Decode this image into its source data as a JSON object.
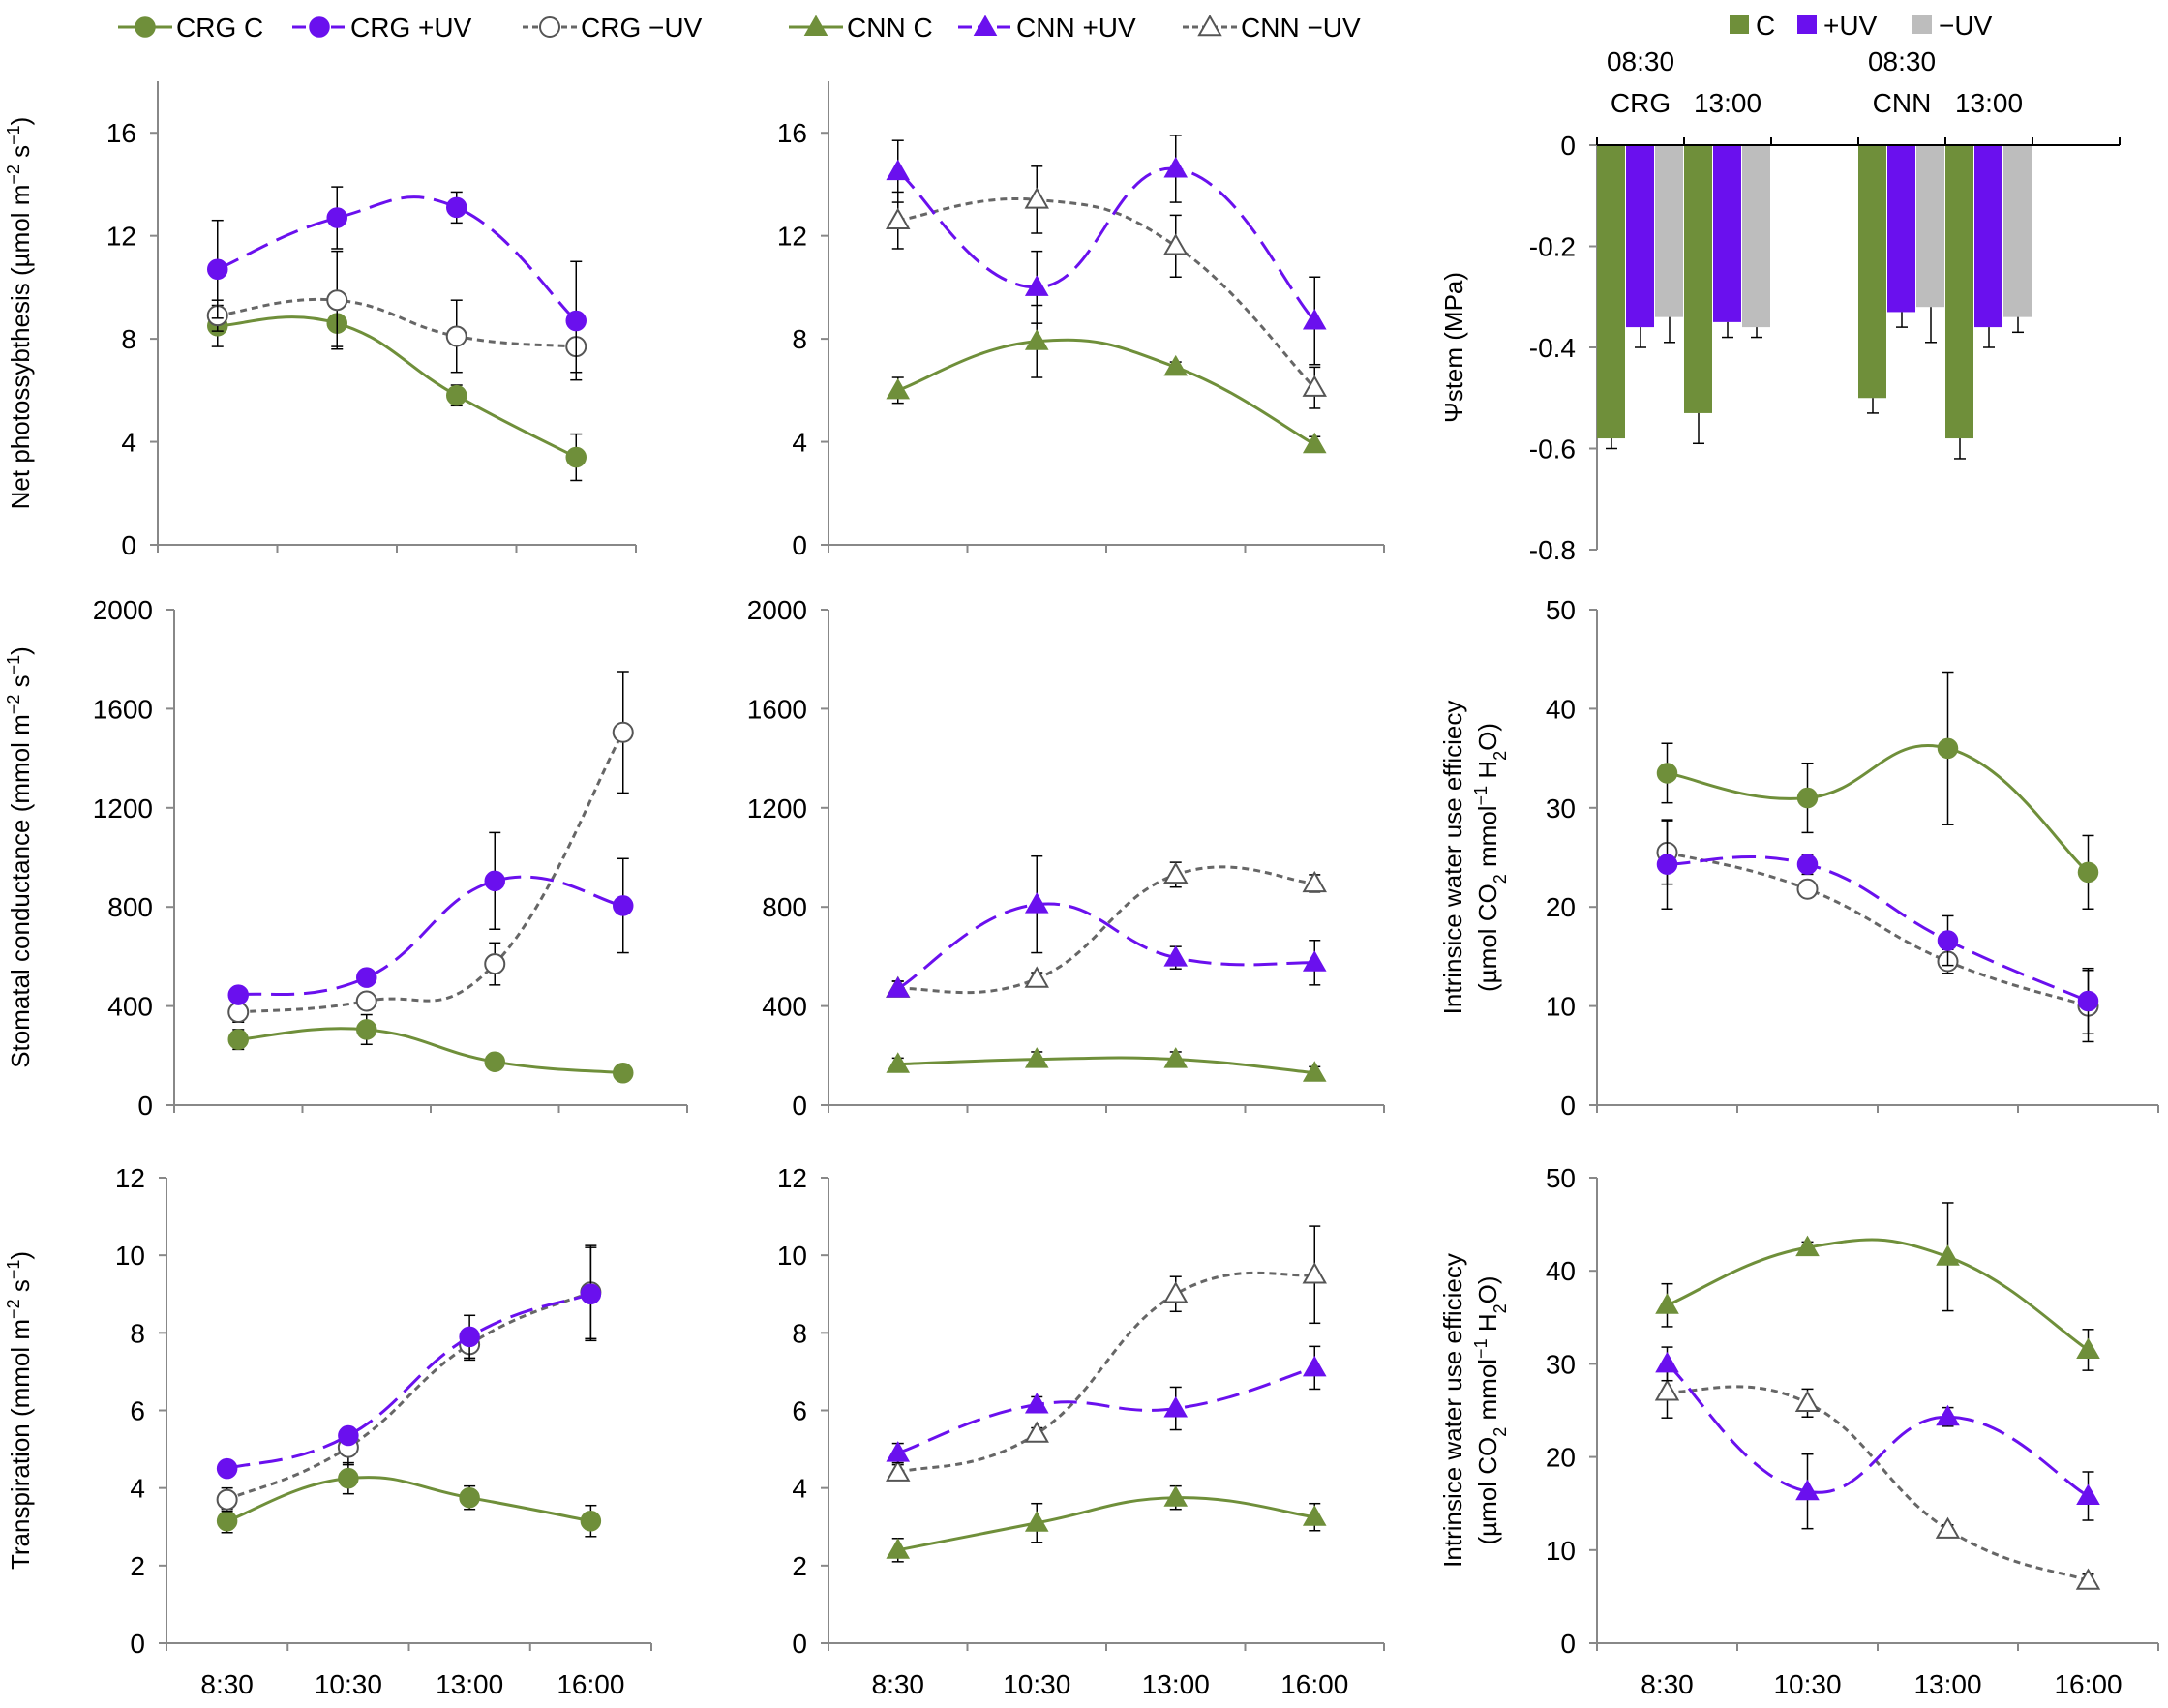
{
  "colors": {
    "control": "#6f8f3a",
    "plusUV": "#6a10ee",
    "minusUV": "#666666",
    "minusUVBar": "#bdbdbd"
  },
  "legend": {
    "crg": [
      "CRG C",
      "CRG  +UV",
      "CRG  −UV"
    ],
    "cnn": [
      "CNN C",
      "CNN  +UV",
      "CNN  −UV"
    ],
    "bars": [
      "C",
      "+UV",
      "−UV"
    ]
  },
  "chart_data": [
    {
      "id": "crg_photo",
      "type": "line",
      "ylabel_lines": [
        [
          {
            "t": "Net photossybthesis (µmol m"
          },
          {
            "t": "−2",
            "sup": true
          },
          {
            "t": " s"
          },
          {
            "t": "−1",
            "sup": true
          },
          {
            "t": ")"
          }
        ]
      ],
      "ylim": [
        0,
        18
      ],
      "yticks": [
        0,
        4,
        8,
        12,
        16
      ],
      "x_labels": [
        "8:30",
        "10:30",
        "13:00",
        "16:00"
      ],
      "series": [
        {
          "name": "CRG C",
          "treat": "control",
          "marker": "circle",
          "values": [
            8.5,
            8.6,
            5.8,
            3.4
          ],
          "err": [
            0.8,
            0.9,
            0.4,
            0.9
          ]
        },
        {
          "name": "CRG +UV",
          "treat": "plusUV",
          "marker": "circle",
          "values": [
            10.7,
            12.7,
            13.1,
            8.7
          ],
          "err": [
            1.9,
            1.2,
            0.6,
            2.3
          ]
        },
        {
          "name": "CRG −UV",
          "treat": "minusUV",
          "marker": "circle",
          "values": [
            8.9,
            9.5,
            8.1,
            7.7
          ],
          "err": [
            0.6,
            1.9,
            1.4,
            1.0
          ]
        }
      ]
    },
    {
      "id": "cnn_photo",
      "type": "line",
      "ylabel_lines": [],
      "ylim": [
        0,
        18
      ],
      "yticks": [
        0,
        4,
        8,
        12,
        16
      ],
      "x_labels": [
        "8:30",
        "10:30",
        "13:00",
        "16:00"
      ],
      "series": [
        {
          "name": "CNN C",
          "treat": "control",
          "marker": "triangle",
          "values": [
            6.0,
            7.9,
            6.9,
            3.9
          ],
          "err": [
            0.5,
            1.4,
            0.2,
            0.3
          ]
        },
        {
          "name": "CNN +UV",
          "treat": "plusUV",
          "marker": "triangle",
          "values": [
            14.5,
            10.0,
            14.6,
            8.7
          ],
          "err": [
            1.2,
            1.4,
            1.3,
            1.7
          ]
        },
        {
          "name": "CNN −UV",
          "treat": "minusUV",
          "marker": "triangle",
          "values": [
            12.6,
            13.4,
            11.6,
            6.1
          ],
          "err": [
            1.1,
            1.3,
            1.2,
            0.8
          ]
        }
      ]
    },
    {
      "id": "stem_bars",
      "type": "bar",
      "ylabel": "Ψstem (MPa)",
      "ylim": [
        -0.8,
        0
      ],
      "yticks": [
        0,
        -0.2,
        -0.4,
        -0.6,
        -0.8
      ],
      "group_labels": [
        [
          "08:30",
          "CRG"
        ],
        [
          "13:00"
        ],
        [
          "08:30",
          "CNN"
        ],
        [
          "13:00"
        ]
      ],
      "groups": [
        {
          "values": [
            -0.58,
            -0.36,
            -0.34
          ],
          "err": [
            0.02,
            0.04,
            0.05
          ]
        },
        {
          "values": [
            -0.53,
            -0.35,
            -0.36
          ],
          "err": [
            0.06,
            0.03,
            0.02
          ]
        },
        {
          "values": [
            -0.5,
            -0.33,
            -0.32
          ],
          "err": [
            0.03,
            0.03,
            0.07
          ]
        },
        {
          "values": [
            -0.58,
            -0.36,
            -0.34
          ],
          "err": [
            0.04,
            0.04,
            0.03
          ]
        }
      ]
    },
    {
      "id": "crg_gs",
      "type": "line",
      "ylabel_lines": [
        [
          {
            "t": "Stomatal conductance (mmol m"
          },
          {
            "t": "−2",
            "sup": true
          },
          {
            "t": " s"
          },
          {
            "t": "−1",
            "sup": true
          },
          {
            "t": ")"
          }
        ]
      ],
      "ylim": [
        0,
        2000
      ],
      "yticks": [
        0,
        400,
        800,
        1200,
        1600,
        2000
      ],
      "x_labels": [
        "8:30",
        "10:30",
        "13:00",
        "16:00"
      ],
      "series": [
        {
          "name": "CRG C",
          "treat": "control",
          "marker": "circle",
          "values": [
            265,
            305,
            175,
            130
          ],
          "err": [
            40,
            60,
            15,
            10
          ]
        },
        {
          "name": "CRG +UV",
          "treat": "plusUV",
          "marker": "circle",
          "values": [
            445,
            515,
            905,
            805
          ],
          "err": [
            25,
            25,
            195,
            190
          ]
        },
        {
          "name": "CRG −UV",
          "treat": "minusUV",
          "marker": "circle",
          "values": [
            375,
            420,
            570,
            1505
          ],
          "err": [
            40,
            30,
            85,
            245
          ]
        }
      ]
    },
    {
      "id": "cnn_gs",
      "type": "line",
      "ylabel_lines": [],
      "ylim": [
        0,
        2000
      ],
      "yticks": [
        0,
        400,
        800,
        1200,
        1600,
        2000
      ],
      "x_labels": [
        "8:30",
        "10:30",
        "13:00",
        "16:00"
      ],
      "series": [
        {
          "name": "CNN C",
          "treat": "control",
          "marker": "triangle",
          "values": [
            165,
            185,
            185,
            130
          ],
          "err": [
            25,
            30,
            30,
            25
          ]
        },
        {
          "name": "CNN +UV",
          "treat": "plusUV",
          "marker": "triangle",
          "values": [
            470,
            810,
            595,
            575
          ],
          "err": [
            30,
            195,
            45,
            90
          ]
        },
        {
          "name": "CNN −UV",
          "treat": "minusUV",
          "marker": "triangle",
          "values": [
            470,
            510,
            930,
            895
          ],
          "err": [
            30,
            25,
            50,
            35
          ]
        }
      ]
    },
    {
      "id": "crg_wue",
      "type": "line",
      "ylabel_lines": [
        [
          {
            "t": "Intrinsice water use efficiecy"
          }
        ],
        [
          {
            "t": "(µmol CO"
          },
          {
            "t": "2",
            "sub": true
          },
          {
            "t": " mmol"
          },
          {
            "t": "−1",
            "sup": true
          },
          {
            "t": " H"
          },
          {
            "t": "2",
            "sub": true
          },
          {
            "t": "O)"
          }
        ]
      ],
      "ylim": [
        0,
        50
      ],
      "yticks": [
        0,
        10,
        20,
        30,
        40,
        50
      ],
      "x_labels": [
        "8:30",
        "10:30",
        "13:00",
        "16:00"
      ],
      "series": [
        {
          "name": "CRG C",
          "treat": "control",
          "marker": "circle",
          "values": [
            33.5,
            31.0,
            36.0,
            23.5
          ],
          "err": [
            3.0,
            3.5,
            7.7,
            3.7
          ]
        },
        {
          "name": "CRG +UV",
          "treat": "plusUV",
          "marker": "circle",
          "values": [
            24.3,
            24.3,
            16.6,
            10.5
          ],
          "err": [
            4.5,
            1.0,
            2.5,
            3.3
          ]
        },
        {
          "name": "CRG −UV",
          "treat": "minusUV",
          "marker": "circle",
          "values": [
            25.5,
            21.8,
            14.5,
            10.0
          ],
          "err": [
            3.2,
            0.8,
            1.2,
            3.6
          ]
        }
      ]
    },
    {
      "id": "crg_e",
      "type": "line",
      "ylabel_lines": [
        [
          {
            "t": "Transpiration (mmol m"
          },
          {
            "t": "−2",
            "sup": true
          },
          {
            "t": " s"
          },
          {
            "t": "−1",
            "sup": true
          },
          {
            "t": ")"
          }
        ]
      ],
      "ylim": [
        0,
        12
      ],
      "yticks": [
        0,
        2,
        4,
        6,
        8,
        10,
        12
      ],
      "x_labels": [
        "8:30",
        "10:30",
        "13:00",
        "16:00"
      ],
      "series": [
        {
          "name": "CRG C",
          "treat": "control",
          "marker": "circle",
          "values": [
            3.15,
            4.25,
            3.75,
            3.15
          ],
          "err": [
            0.3,
            0.4,
            0.3,
            0.4
          ]
        },
        {
          "name": "CRG +UV",
          "treat": "plusUV",
          "marker": "circle",
          "values": [
            4.5,
            5.35,
            7.9,
            9.0
          ],
          "err": [
            0.15,
            0.2,
            0.55,
            1.2
          ]
        },
        {
          "name": "CRG −UV",
          "treat": "minusUV",
          "marker": "circle",
          "values": [
            3.7,
            5.05,
            7.7,
            9.05
          ],
          "err": [
            0.3,
            0.45,
            0.4,
            1.2
          ]
        }
      ]
    },
    {
      "id": "cnn_e",
      "type": "line",
      "ylabel_lines": [],
      "ylim": [
        0,
        12
      ],
      "yticks": [
        0,
        2,
        4,
        6,
        8,
        10,
        12
      ],
      "x_labels": [
        "8:30",
        "10:30",
        "13:00",
        "16:00"
      ],
      "series": [
        {
          "name": "CNN C",
          "treat": "control",
          "marker": "triangle",
          "values": [
            2.4,
            3.1,
            3.75,
            3.25
          ],
          "err": [
            0.3,
            0.5,
            0.3,
            0.35
          ]
        },
        {
          "name": "CNN +UV",
          "treat": "plusUV",
          "marker": "triangle",
          "values": [
            4.9,
            6.15,
            6.05,
            7.1
          ],
          "err": [
            0.25,
            0.2,
            0.55,
            0.55
          ]
        },
        {
          "name": "CNN −UV",
          "treat": "minusUV",
          "marker": "triangle",
          "values": [
            4.4,
            5.4,
            9.0,
            9.5
          ],
          "err": [
            0.2,
            0.15,
            0.45,
            1.25
          ]
        }
      ]
    },
    {
      "id": "cnn_wue",
      "type": "line",
      "ylabel_lines": [
        [
          {
            "t": "Intrinsice water use efficiecy"
          }
        ],
        [
          {
            "t": "(µmol CO"
          },
          {
            "t": "2",
            "sub": true
          },
          {
            "t": " mmol"
          },
          {
            "t": "−1",
            "sup": true
          },
          {
            "t": " H"
          },
          {
            "t": "2",
            "sub": true
          },
          {
            "t": "O)"
          }
        ]
      ],
      "ylim": [
        0,
        50
      ],
      "yticks": [
        0,
        10,
        20,
        30,
        40,
        50
      ],
      "x_labels": [
        "8:30",
        "10:30",
        "13:00",
        "16:00"
      ],
      "series": [
        {
          "name": "CNN C",
          "treat": "control",
          "marker": "triangle",
          "values": [
            36.3,
            42.5,
            41.5,
            31.5
          ],
          "err": [
            2.3,
            0.6,
            5.8,
            2.2
          ]
        },
        {
          "name": "CNN +UV",
          "treat": "plusUV",
          "marker": "triangle",
          "values": [
            30.0,
            16.3,
            24.3,
            15.8
          ],
          "err": [
            1.8,
            4.0,
            1.0,
            2.6
          ]
        },
        {
          "name": "CNN −UV",
          "treat": "minusUV",
          "marker": "triangle",
          "values": [
            27.0,
            25.8,
            12.2,
            6.7
          ],
          "err": [
            2.8,
            1.5,
            0.5,
            0.7
          ]
        }
      ]
    }
  ]
}
